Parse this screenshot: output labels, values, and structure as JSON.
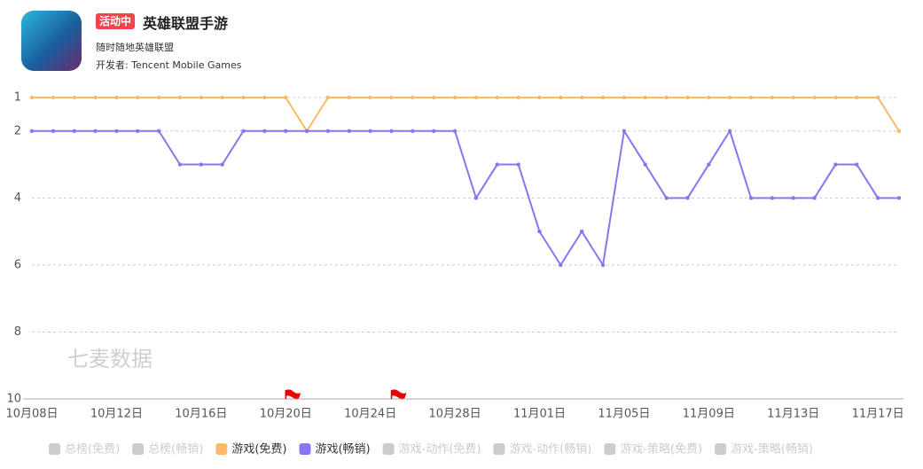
{
  "header": {
    "badge": "活动中",
    "title": "英雄联盟手游",
    "subtitle": "随时随地英雄联盟",
    "developer": "开发者: Tencent Mobile Games"
  },
  "watermark": "七麦数据",
  "chart_data": {
    "type": "line",
    "y_reversed": true,
    "categories": [
      "10月08日",
      null,
      null,
      null,
      "10月12日",
      null,
      null,
      null,
      "10月16日",
      null,
      null,
      null,
      "10月20日",
      null,
      null,
      null,
      "10月24日",
      null,
      null,
      null,
      "10月28日",
      null,
      null,
      null,
      "11月01日",
      null,
      null,
      null,
      "11月05日",
      null,
      null,
      null,
      "11月09日",
      null,
      null,
      null,
      "11月13日",
      null,
      null,
      null,
      "11月17日",
      null
    ],
    "ylim": [
      1,
      10
    ],
    "yticks": [
      1,
      2,
      4,
      6,
      8,
      10
    ],
    "grid": true,
    "flags": [
      12,
      17
    ],
    "series": [
      {
        "name": "总榜(免费)",
        "color": "#cccccc",
        "visible": false
      },
      {
        "name": "总榜(畅销)",
        "color": "#cccccc",
        "visible": false
      },
      {
        "name": "游戏(免费)",
        "color": "#ffb865",
        "visible": true,
        "values": [
          1,
          1,
          1,
          1,
          1,
          1,
          1,
          1,
          1,
          1,
          1,
          1,
          1,
          2,
          1,
          1,
          1,
          1,
          1,
          1,
          1,
          1,
          1,
          1,
          1,
          1,
          1,
          1,
          1,
          1,
          1,
          1,
          1,
          1,
          1,
          1,
          1,
          1,
          1,
          1,
          1,
          2
        ]
      },
      {
        "name": "游戏(畅销)",
        "color": "#8c74f0",
        "visible": true,
        "values": [
          2,
          2,
          2,
          2,
          2,
          2,
          2,
          3,
          3,
          3,
          2,
          2,
          2,
          2,
          2,
          2,
          2,
          2,
          2,
          2,
          2,
          4,
          3,
          3,
          5,
          6,
          5,
          6,
          2,
          3,
          4,
          4,
          3,
          2,
          4,
          4,
          4,
          4,
          3,
          3,
          4,
          4
        ]
      },
      {
        "name": "游戏-动作(免费)",
        "color": "#cccccc",
        "visible": false
      },
      {
        "name": "游戏-动作(畅销)",
        "color": "#cccccc",
        "visible": false
      },
      {
        "name": "游戏-策略(免费)",
        "color": "#cccccc",
        "visible": false
      },
      {
        "name": "游戏-策略(畅销)",
        "color": "#cccccc",
        "visible": false
      }
    ]
  }
}
